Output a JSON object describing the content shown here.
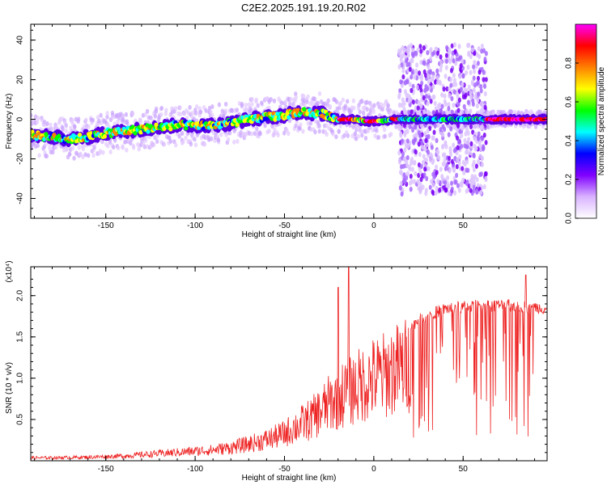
{
  "title": "C2E2.2025.191.19.20.R02",
  "chart_data": [
    {
      "type": "heatmap",
      "title": "C2E2.2025.191.19.20.R02",
      "xlabel": "Height of straight line (km)",
      "ylabel": "Frequency (Hz)",
      "xlim": [
        -192,
        97
      ],
      "ylim": [
        -50,
        48
      ],
      "xticks": [
        -150,
        -100,
        -50,
        0,
        50
      ],
      "yticks": [
        -40,
        -20,
        0,
        20,
        40
      ],
      "colorbar": {
        "label": "Normalized spectral amplitude",
        "range": [
          0.0,
          1.0
        ],
        "ticks": [
          0.0,
          0.2,
          0.4,
          0.6,
          0.8
        ],
        "tick_labels": [
          "0.0",
          "0.2",
          "0.4",
          "0.6",
          "0.8"
        ],
        "colors": [
          "#ffffff",
          "#d9b3ff",
          "#8000ff",
          "#0000ff",
          "#00ffff",
          "#00ff00",
          "#ffff00",
          "#ff8000",
          "#ff0000",
          "#ff00ff"
        ]
      },
      "ridge": {
        "x": [
          -192,
          -180,
          -170,
          -160,
          -150,
          -140,
          -130,
          -120,
          -110,
          -100,
          -90,
          -80,
          -70,
          -60,
          -50,
          -45,
          -40,
          -35,
          -30,
          -25,
          -20,
          -15,
          -10,
          -5,
          0,
          5,
          10,
          15,
          20,
          25,
          30,
          40,
          50,
          60,
          70,
          80,
          90,
          97
        ],
        "y": [
          -8,
          -9,
          -10,
          -9,
          -7,
          -6,
          -5,
          -4,
          -3,
          -3,
          -3,
          -2,
          0,
          1,
          2,
          3,
          4,
          3,
          3,
          2,
          0,
          0,
          0,
          -1,
          -1,
          -1,
          0,
          0,
          0,
          0,
          0,
          0,
          0,
          0,
          0,
          0,
          0,
          0
        ],
        "peak_amplitude_x_ranges": [
          [
            -20,
            -12
          ],
          [
            -5,
            2
          ],
          [
            10,
            14
          ],
          [
            63,
            97
          ]
        ]
      },
      "wide_scatter_region": {
        "x": [
          14,
          63
        ],
        "y": [
          -38,
          38
        ]
      }
    },
    {
      "type": "line",
      "xlabel": "Height of straight line (km)",
      "ylabel": "SNR (10 * v/v)",
      "y_multiplier": "(x10⁴)",
      "xlim": [
        -192,
        97
      ],
      "ylim": [
        0,
        2.35
      ],
      "xticks": [
        -150,
        -100,
        -50,
        0,
        50
      ],
      "yticks": [
        0.5,
        1.0,
        1.5,
        2.0
      ],
      "ytick_labels": [
        "0.5",
        "1.0",
        "1.5",
        "2.0"
      ],
      "series": [
        {
          "color": "#ee2222",
          "envelope_x": [
            -192,
            -180,
            -160,
            -140,
            -120,
            -110,
            -100,
            -90,
            -80,
            -70,
            -60,
            -50,
            -45,
            -40,
            -35,
            -30,
            -25,
            -20,
            -15,
            -10,
            -5,
            0,
            5,
            10,
            15,
            20,
            25,
            30,
            35,
            40,
            50,
            60,
            70,
            80,
            85,
            90,
            97
          ],
          "envelope_y": [
            0.05,
            0.05,
            0.06,
            0.08,
            0.12,
            0.14,
            0.16,
            0.18,
            0.22,
            0.28,
            0.35,
            0.45,
            0.55,
            0.62,
            0.7,
            0.82,
            0.95,
            1.05,
            1.15,
            1.22,
            1.3,
            1.38,
            1.42,
            1.5,
            1.55,
            1.62,
            1.72,
            1.78,
            1.82,
            1.86,
            1.88,
            1.9,
            1.9,
            1.9,
            1.88,
            1.88,
            1.86
          ],
          "spikes": [
            {
              "x": -20,
              "y": 2.1
            },
            {
              "x": -14,
              "y": 2.4
            },
            {
              "x": 85,
              "y": 2.25
            }
          ]
        }
      ]
    }
  ]
}
